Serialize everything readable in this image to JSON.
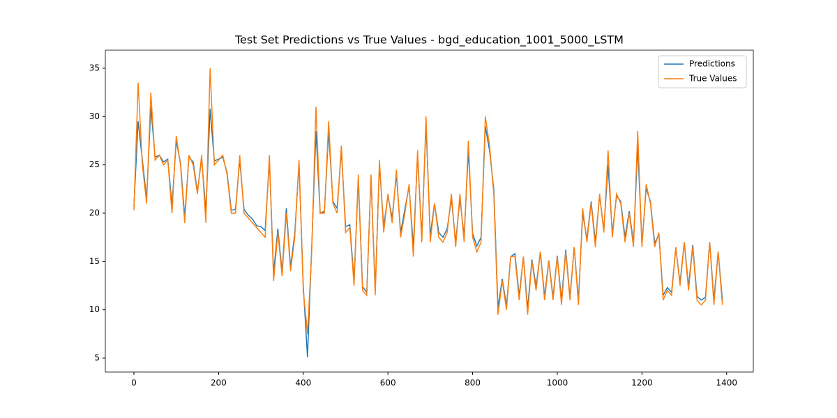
{
  "chart_data": {
    "type": "line",
    "title": "Test Set Predictions vs True Values - bgd_education_1001_5000_LSTM",
    "x": [
      0,
      10,
      20,
      30,
      40,
      50,
      60,
      70,
      80,
      90,
      100,
      110,
      120,
      130,
      140,
      150,
      160,
      170,
      180,
      190,
      200,
      210,
      220,
      230,
      240,
      250,
      260,
      270,
      280,
      290,
      300,
      310,
      320,
      330,
      340,
      350,
      360,
      370,
      380,
      390,
      400,
      410,
      420,
      430,
      440,
      450,
      460,
      470,
      480,
      490,
      500,
      510,
      520,
      530,
      540,
      550,
      560,
      570,
      580,
      590,
      600,
      610,
      620,
      630,
      640,
      650,
      660,
      670,
      680,
      690,
      700,
      710,
      720,
      730,
      740,
      750,
      760,
      770,
      780,
      790,
      800,
      810,
      820,
      830,
      840,
      850,
      860,
      870,
      880,
      890,
      900,
      910,
      920,
      930,
      940,
      950,
      960,
      970,
      980,
      990,
      1000,
      1010,
      1020,
      1030,
      1040,
      1050,
      1060,
      1070,
      1080,
      1090,
      1100,
      1110,
      1120,
      1130,
      1140,
      1150,
      1160,
      1170,
      1180,
      1190,
      1200,
      1210,
      1220,
      1230,
      1240,
      1250,
      1260,
      1270,
      1280,
      1290,
      1300,
      1310,
      1320,
      1330,
      1340,
      1350,
      1360,
      1370,
      1380,
      1390
    ],
    "series": [
      {
        "name": "Predictions",
        "color": "#1f77b4",
        "values": [
          20.7,
          29.5,
          25.5,
          21.5,
          31,
          25.8,
          26,
          25.3,
          25.6,
          20.8,
          27.5,
          25.2,
          19.6,
          25.8,
          25.3,
          22.2,
          25.7,
          20.2,
          30.8,
          25.4,
          25.6,
          25.8,
          24.2,
          20.3,
          20.4,
          25.5,
          20.4,
          19.8,
          19.4,
          18.7,
          18.6,
          18.2,
          25.5,
          13.8,
          18.4,
          13.9,
          20.5,
          14.4,
          17.9,
          25.2,
          12.5,
          5.1,
          16.5,
          28.5,
          20,
          20.2,
          28.5,
          21.2,
          20.5,
          26.5,
          18.6,
          18.8,
          13,
          23.5,
          12.4,
          11.8,
          23.7,
          12,
          25,
          18.6,
          21.8,
          19.5,
          24,
          18,
          20.4,
          22.8,
          16.5,
          26,
          17.6,
          29.2,
          17.7,
          21,
          18,
          17.5,
          18.4,
          21.5,
          17,
          21.5,
          17.6,
          26.5,
          17.9,
          16.6,
          17.5,
          29,
          26.5,
          22.5,
          10.2,
          13.2,
          10.4,
          15.5,
          15.8,
          11.4,
          15.5,
          10.1,
          15.2,
          12.4,
          16,
          11.4,
          15.1,
          11.3,
          15.6,
          11,
          16.2,
          11.3,
          16.5,
          11,
          20,
          17.3,
          21.2,
          17,
          21.8,
          18.3,
          25,
          17.9,
          21.8,
          21.2,
          17.5,
          20.2,
          16.9,
          27,
          16.8,
          22.6,
          21.2,
          16.9,
          17.8,
          11.5,
          12.3,
          11.8,
          16.4,
          12.8,
          17,
          12.4,
          16.7,
          11.4,
          11,
          11.3,
          17,
          11,
          16,
          11
        ]
      },
      {
        "name": "True Values",
        "color": "#ff7f0e",
        "values": [
          20.3,
          33.5,
          25,
          21,
          32.5,
          25.5,
          26,
          25,
          25.5,
          20,
          28,
          25,
          19,
          26,
          25,
          22,
          26,
          19,
          35,
          25,
          25.5,
          26,
          24,
          20,
          20,
          26,
          20,
          19.5,
          19,
          18.5,
          18,
          17.5,
          26,
          13,
          18,
          13.5,
          20,
          14,
          17.5,
          25.5,
          12,
          7.5,
          16,
          31,
          20,
          20,
          29.5,
          21,
          20,
          27,
          18,
          18.5,
          12.5,
          24,
          12,
          11.5,
          24,
          11.5,
          25.5,
          18,
          22,
          19,
          24.5,
          17.5,
          20,
          23,
          15.5,
          26.5,
          17,
          30,
          17,
          21,
          17.5,
          17,
          18,
          22,
          16.5,
          22,
          17,
          27.5,
          17.5,
          16,
          17,
          30,
          27,
          22,
          9.5,
          13,
          10,
          15.5,
          15.5,
          11,
          15.5,
          9.5,
          15,
          12,
          16,
          11,
          15,
          11,
          15.5,
          10.5,
          16,
          11,
          16.5,
          10.5,
          20.5,
          17,
          21,
          16.5,
          22,
          18,
          26.5,
          17.5,
          22,
          21,
          17,
          20,
          16.5,
          28.5,
          16.5,
          23,
          21,
          16.5,
          18,
          11,
          12,
          11.5,
          16.5,
          12.5,
          17,
          12,
          16.5,
          11,
          10.5,
          11,
          17,
          10.5,
          16,
          10.5
        ]
      }
    ],
    "xlim": [
      -67.5,
      1463
    ],
    "ylim": [
      3.56,
      36.87
    ],
    "xticks": [
      0,
      200,
      400,
      600,
      800,
      1000,
      1200,
      1400
    ],
    "yticks": [
      5,
      10,
      15,
      20,
      25,
      30,
      35
    ],
    "legend": "upper right"
  }
}
